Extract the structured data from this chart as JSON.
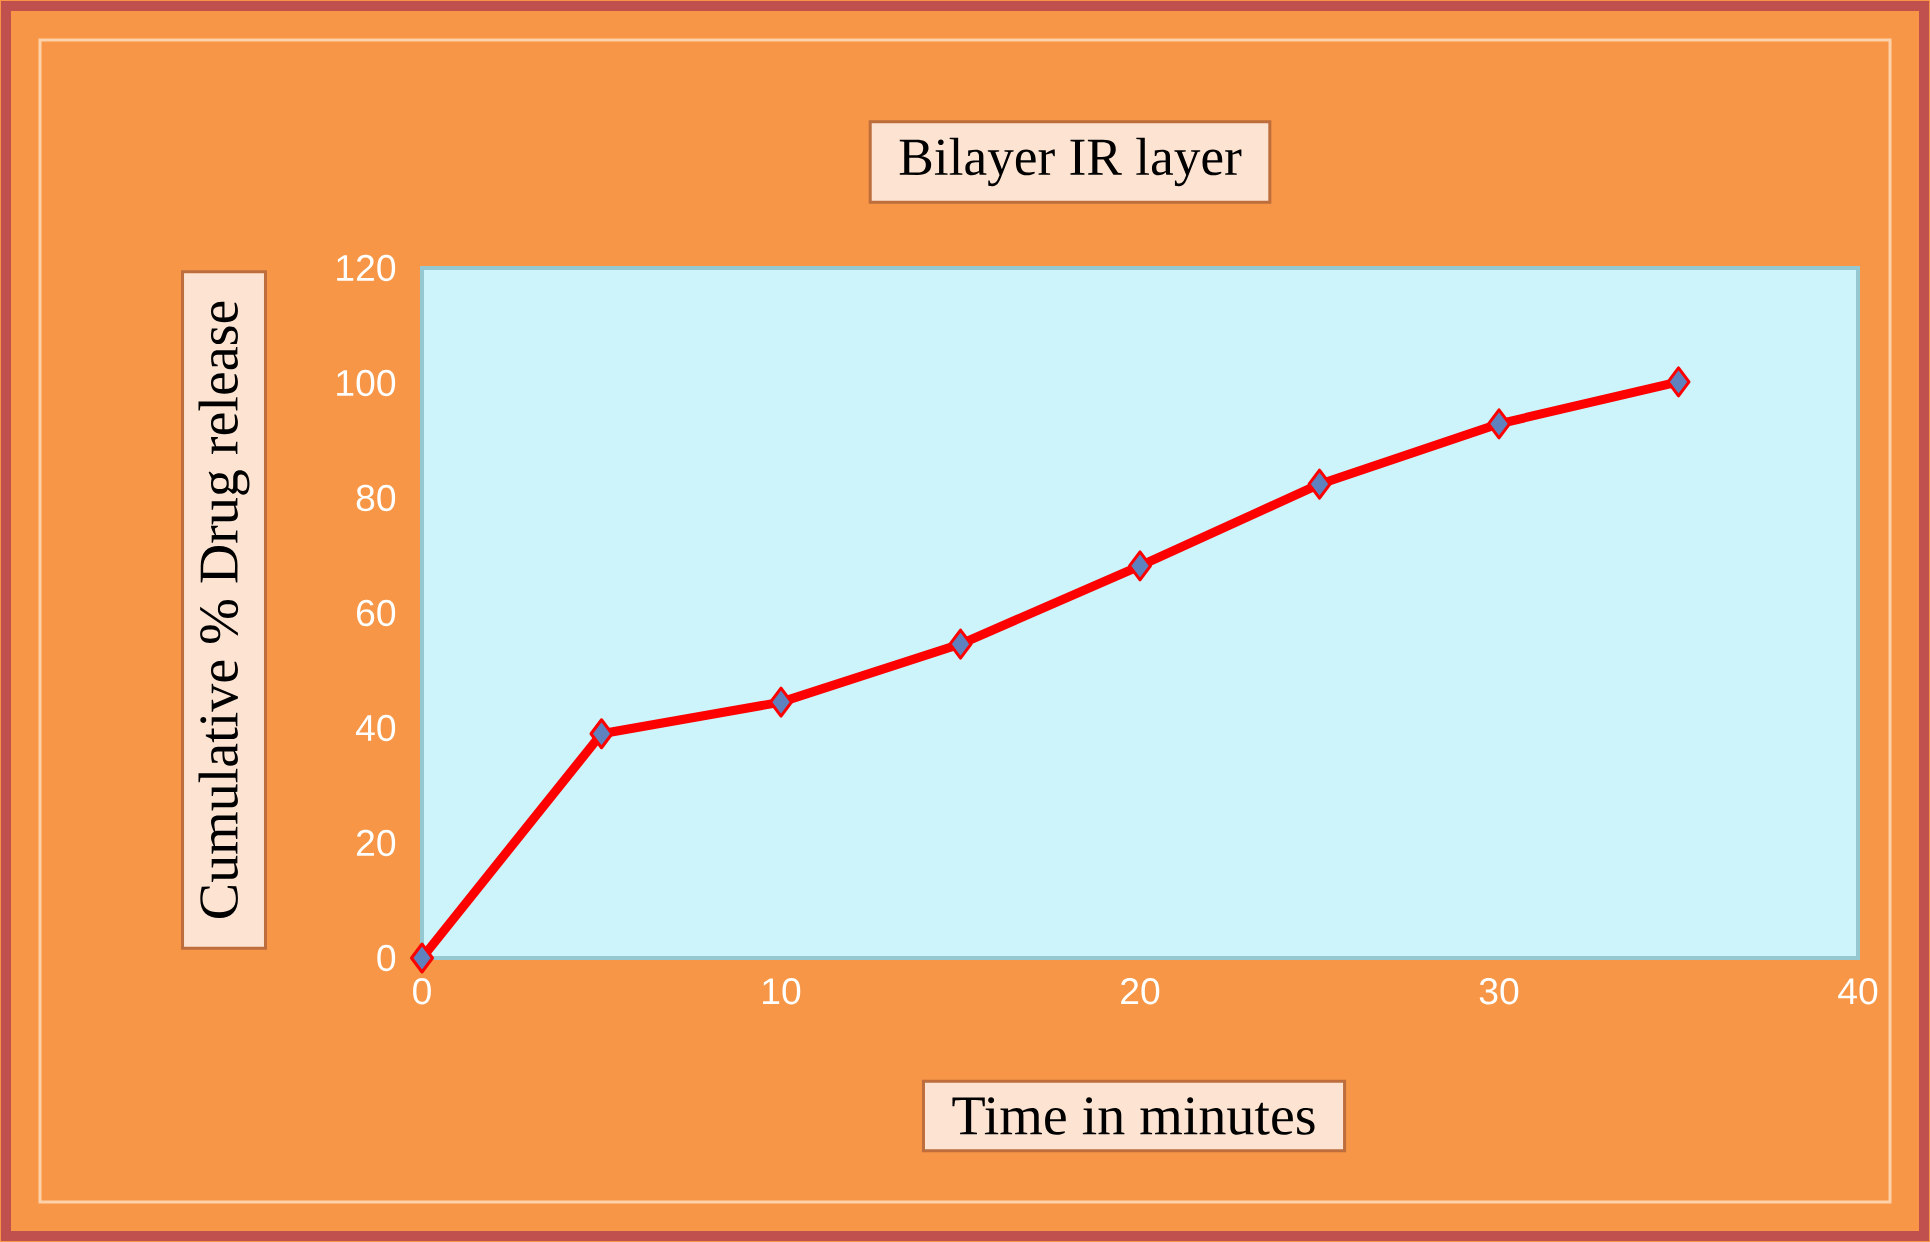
{
  "chart_data": {
    "type": "line",
    "title": "Bilayer IR layer",
    "xlabel": "Time in minutes",
    "ylabel": "Cumulative % Drug release",
    "x": [
      0,
      5,
      10,
      15,
      20,
      25,
      30,
      35
    ],
    "values": [
      0,
      39,
      44.5,
      54.6,
      68.2,
      82.4,
      92.9,
      100.2
    ],
    "color": "#ff0000",
    "marker": "diamond",
    "xlim": [
      0,
      40
    ],
    "ylim": [
      0,
      120
    ],
    "xticks": [
      0,
      10,
      20,
      30,
      40
    ],
    "yticks": [
      0,
      20,
      40,
      60,
      80,
      100,
      120
    ]
  }
}
